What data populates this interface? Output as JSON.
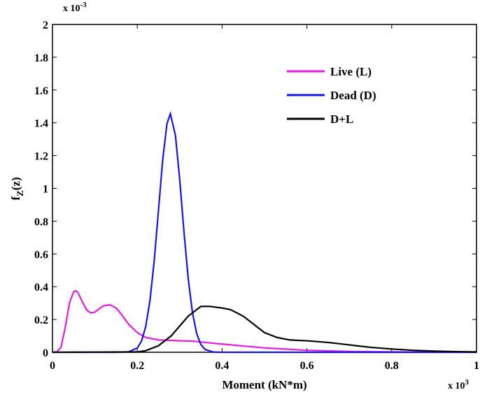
{
  "chart_data": {
    "type": "line",
    "y_label": {
      "main": "f",
      "sub": "Z",
      "rest": "(z)"
    },
    "x_label": "Moment (kN*m)",
    "x_multiplier": {
      "base": "x 10",
      "exponent": "3"
    },
    "y_multiplier": {
      "base": "x 10",
      "exponent": "-3"
    },
    "xlim": [
      0,
      1
    ],
    "xticks": [
      0,
      0.2,
      0.4,
      0.6,
      0.8,
      1
    ],
    "ylim": [
      0,
      2
    ],
    "yticks": [
      0,
      0.2,
      0.4,
      0.6,
      0.8,
      1,
      1.2,
      1.4,
      1.6,
      1.8,
      2
    ],
    "legend": "upper right",
    "series": [
      {
        "name": "Live (L)",
        "color": "#e619e6",
        "x": [
          0,
          0.01,
          0.02,
          0.03,
          0.04,
          0.05,
          0.055,
          0.06,
          0.07,
          0.08,
          0.09,
          0.1,
          0.11,
          0.12,
          0.135,
          0.15,
          0.16,
          0.18,
          0.2,
          0.22,
          0.25,
          0.3,
          0.33,
          0.36,
          0.4,
          0.45,
          0.5,
          0.6,
          0.7,
          0.8,
          1.0
        ],
        "values": [
          0,
          0.002,
          0.03,
          0.15,
          0.3,
          0.37,
          0.375,
          0.365,
          0.31,
          0.26,
          0.24,
          0.245,
          0.265,
          0.283,
          0.29,
          0.27,
          0.24,
          0.17,
          0.12,
          0.09,
          0.075,
          0.07,
          0.068,
          0.06,
          0.05,
          0.038,
          0.027,
          0.012,
          0.005,
          0.002,
          0
        ]
      },
      {
        "name": "Dead (D)",
        "color": "#1414e6",
        "x": [
          0,
          0.15,
          0.18,
          0.2,
          0.21,
          0.22,
          0.23,
          0.24,
          0.25,
          0.26,
          0.27,
          0.278,
          0.29,
          0.3,
          0.31,
          0.32,
          0.33,
          0.34,
          0.35,
          0.36,
          0.38,
          0.4,
          1.0
        ],
        "values": [
          0,
          0,
          0.003,
          0.026,
          0.068,
          0.158,
          0.318,
          0.56,
          0.867,
          1.175,
          1.395,
          1.455,
          1.323,
          1.057,
          0.739,
          0.453,
          0.244,
          0.115,
          0.047,
          0.017,
          0.001,
          0,
          0
        ]
      },
      {
        "name": "D+L",
        "color": "#000000",
        "x": [
          0,
          0.2,
          0.22,
          0.25,
          0.28,
          0.3,
          0.32,
          0.35,
          0.37,
          0.4,
          0.42,
          0.45,
          0.48,
          0.5,
          0.53,
          0.56,
          0.6,
          0.65,
          0.7,
          0.75,
          0.8,
          0.85,
          0.9,
          0.95,
          1.0
        ],
        "values": [
          0,
          0.002,
          0.01,
          0.04,
          0.1,
          0.16,
          0.22,
          0.28,
          0.28,
          0.27,
          0.26,
          0.22,
          0.16,
          0.12,
          0.09,
          0.075,
          0.07,
          0.06,
          0.045,
          0.03,
          0.02,
          0.012,
          0.007,
          0.004,
          0.002
        ]
      }
    ]
  }
}
